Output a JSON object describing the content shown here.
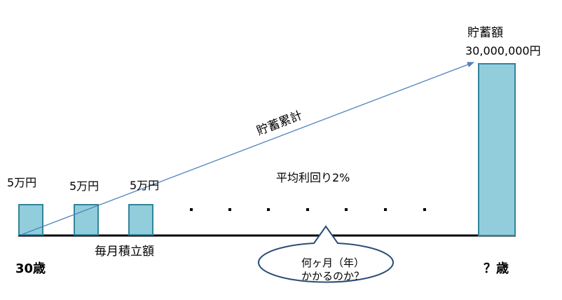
{
  "deposits": [
    {
      "label": "5万円"
    },
    {
      "label": "5万円"
    },
    {
      "label": "5万円"
    }
  ],
  "start_age": "30歳",
  "end_age": "？歳",
  "monthly_label": "毎月積立額",
  "rate_label": "平均利回り2%",
  "cumulative_label": "貯蓄累計",
  "savings": {
    "title": "貯蓄額",
    "amount": "30,000,000円"
  },
  "callout": {
    "line1": "何ヶ月（年）",
    "line2": "かかるのか？"
  },
  "ellipsis_dots": 7,
  "colors": {
    "bar_fill": "#92CDDC",
    "bar_stroke": "#31849B",
    "arrow": "#4F81BD",
    "callout_stroke": "#2C4D75",
    "baseline": "#000000"
  }
}
